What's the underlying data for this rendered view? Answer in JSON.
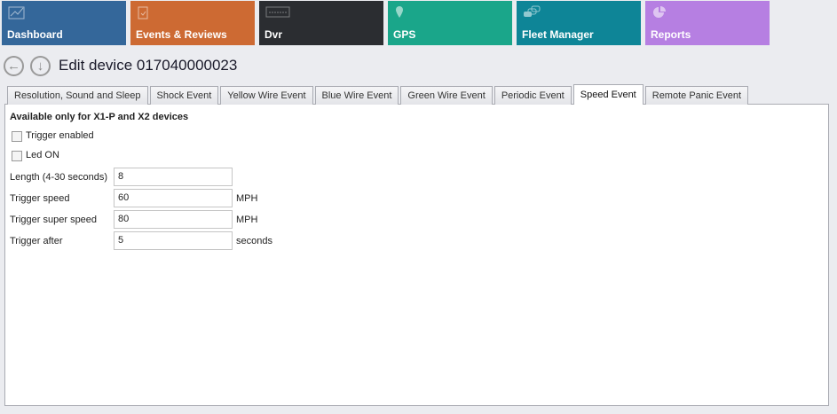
{
  "tiles": [
    {
      "label": "Dashboard",
      "icon": "chart-line-icon",
      "color": "#34679a"
    },
    {
      "label": "Events & Reviews",
      "icon": "clipboard-check-icon",
      "color": "#cd6a33"
    },
    {
      "label": "Dvr",
      "icon": "dvr-logo-icon",
      "color": "#2b2d31"
    },
    {
      "label": "GPS",
      "icon": "map-pin-icon",
      "color": "#1aa68a"
    },
    {
      "label": "Fleet Manager",
      "icon": "cars-icon",
      "color": "#0e8597"
    },
    {
      "label": "Reports",
      "icon": "pie-chart-icon",
      "color": "#b67fe2"
    }
  ],
  "title": "Edit device 017040000023",
  "tabs": [
    "Resolution, Sound and Sleep",
    "Shock Event",
    "Yellow Wire Event",
    "Blue Wire Event",
    "Green Wire Event",
    "Periodic Event",
    "Speed Event",
    "Remote Panic Event"
  ],
  "active_tab": "Speed Event",
  "form": {
    "heading": "Available only for X1-P and X2 devices",
    "trigger_enabled": {
      "label": "Trigger enabled",
      "checked": false
    },
    "led_on": {
      "label": "Led ON",
      "checked": false
    },
    "length": {
      "label": "Length (4-30 seconds)",
      "value": "8"
    },
    "trigger_speed": {
      "label": "Trigger speed",
      "value": "60",
      "unit": "MPH"
    },
    "trigger_super_speed": {
      "label": "Trigger super speed",
      "value": "80",
      "unit": "MPH"
    },
    "trigger_after": {
      "label": "Trigger after",
      "value": "5",
      "unit": "seconds"
    }
  }
}
